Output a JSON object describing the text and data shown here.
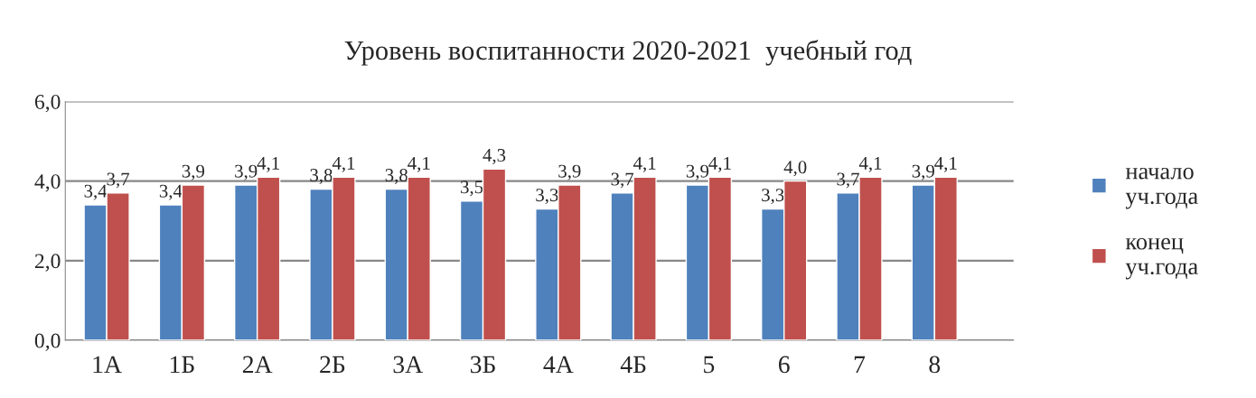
{
  "chart_data": {
    "type": "bar",
    "title": "Уровень воспитанности 2020-2021  учебный год",
    "categories": [
      "1А",
      "1Б",
      "2А",
      "2Б",
      "3А",
      "3Б",
      "4А",
      "4Б",
      "5",
      "6",
      "7",
      "8"
    ],
    "series": [
      {
        "name": "начало уч.года",
        "color": "#4f81bd",
        "values": [
          3.4,
          3.4,
          3.9,
          3.8,
          3.8,
          3.5,
          3.3,
          3.7,
          3.9,
          3.3,
          3.7,
          3.9
        ],
        "value_labels": [
          "3,4",
          "3,4",
          "3,9",
          "3,8",
          "3,8",
          "3,5",
          "3,3",
          "3,7",
          "3,9",
          "3,3",
          "3,7",
          "3,9"
        ]
      },
      {
        "name": "конец уч.года",
        "color": "#c0504d",
        "values": [
          3.7,
          3.9,
          4.1,
          4.1,
          4.1,
          4.3,
          3.9,
          4.1,
          4.1,
          4.0,
          4.1,
          4.1
        ],
        "value_labels": [
          "3,7",
          "3,9",
          "4,1",
          "4,1",
          "4,1",
          "4,3",
          "3,9",
          "4,1",
          "4,1",
          "4,0",
          "4,1",
          "4,1"
        ]
      }
    ],
    "ylim": [
      0,
      6
    ],
    "yticks": [
      {
        "value": 0,
        "label": "0,0"
      },
      {
        "value": 2,
        "label": "2,0"
      },
      {
        "value": 4,
        "label": "4,0"
      },
      {
        "value": 6,
        "label": "6,0"
      }
    ],
    "grid": "y",
    "legend": "right"
  }
}
